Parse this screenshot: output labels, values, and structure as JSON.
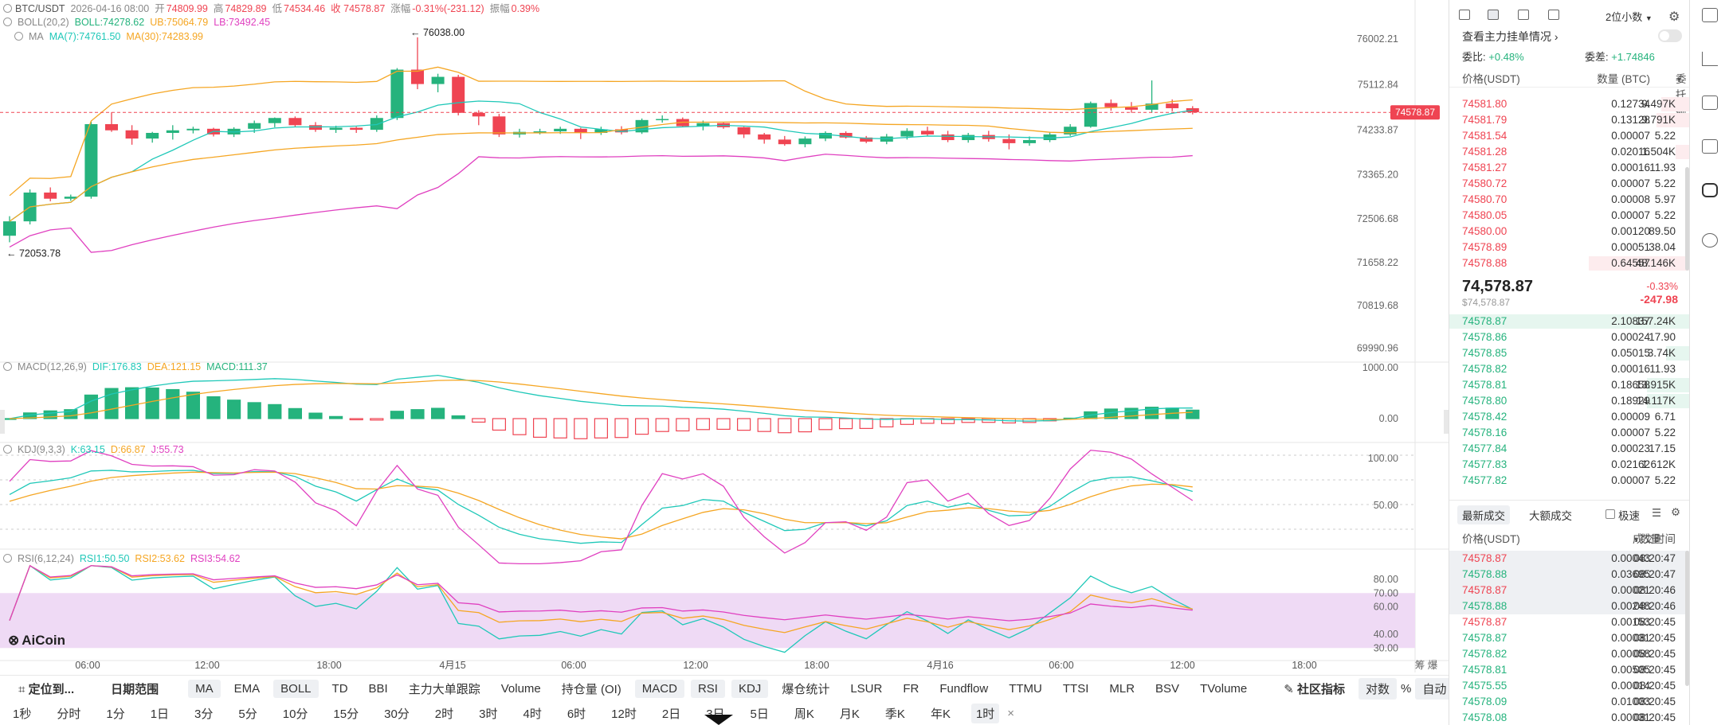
{
  "header": {
    "pair": "BTC/USDT",
    "datetime": "2026-04-16 08:00",
    "open_l": "开",
    "open": "74809.99",
    "high_l": "高",
    "high": "74829.89",
    "low_l": "低",
    "low": "74534.46",
    "close": "收 74578.87",
    "chg_l": "涨幅",
    "chg": "-0.31%(-231.12)",
    "amp_l": "振幅",
    "amp": "0.39%"
  },
  "boll": {
    "label": "BOLL(20,2)",
    "mid": "BOLL:74278.62",
    "ub": "UB:75064.79",
    "lb": "LB:73492.45"
  },
  "ma": {
    "label": "MA",
    "ma7": "MA(7):74761.50",
    "ma30": "MA(30):74283.99"
  },
  "macd": {
    "label": "MACD(12,26,9)",
    "dif": "DIF:176.83",
    "dea": "DEA:121.15",
    "macd": "MACD:111.37"
  },
  "kdj": {
    "label": "KDJ(9,3,3)",
    "k": "K:63.15",
    "d": "D:66.87",
    "j": "J:55.73"
  },
  "rsi": {
    "label": "RSI(6,12,24)",
    "rsi1": "RSI1:50.50",
    "rsi2": "RSI2:53.62",
    "rsi3": "RSI3:54.62"
  },
  "price_axis": [
    "76002.21",
    "75112.84",
    "74233.87",
    "73365.20",
    "72506.68",
    "71658.22",
    "70819.68",
    "69990.96"
  ],
  "current_price_tag": "74578.87",
  "max_label": "← 76038.00",
  "min_label": "← 72053.78",
  "macd_axis": [
    "1000.00",
    "0.00"
  ],
  "kdj_axis": [
    "100.00",
    "50.00"
  ],
  "rsi_axis": [
    "80.00",
    "70.00",
    "60.00",
    "40.00",
    "30.00"
  ],
  "time_axis": [
    "06:00",
    "12:00",
    "18:00",
    "4月15",
    "06:00",
    "12:00",
    "18:00",
    "4月16",
    "06:00",
    "12:00",
    "18:00"
  ],
  "axis_corner": "筹 爆",
  "logo": "AiCoin",
  "toolbar_main": {
    "locate": "定位到...",
    "range": "日期范围",
    "indicators": [
      "MA",
      "EMA",
      "BOLL",
      "TD",
      "BBI",
      "主力大单跟踪",
      "Volume",
      "持仓量 (OI)",
      "MACD",
      "RSI",
      "KDJ",
      "爆仓统计",
      "LSUR",
      "FR",
      "Fundflow",
      "TTMU",
      "TTSI",
      "MLR",
      "BSV",
      "TVolume"
    ],
    "community": "社区指标",
    "log": "对数",
    "pct": "%",
    "auto": "自动"
  },
  "timeframes": [
    "1秒",
    "分时",
    "1分",
    "1日",
    "3分",
    "5分",
    "10分",
    "15分",
    "30分",
    "2时",
    "3时",
    "4时",
    "6时",
    "12时",
    "2日",
    "3日",
    "5日",
    "周K",
    "月K",
    "季K",
    "年K",
    "1时"
  ],
  "timeframe_close": "×",
  "orderbook": {
    "decimals": "2位小数",
    "main_orders": "查看主力挂单情况",
    "ratio_l": "委比:",
    "ratio": "+0.48%",
    "diff_l": "委差:",
    "diff": "+1.74846",
    "col_price": "价格(USDT)",
    "col_qty": "数量 (BTC)",
    "col_total": "委托额",
    "asks": [
      {
        "p": "74581.80",
        "q": "0.12734",
        "t": "9.497K"
      },
      {
        "p": "74581.79",
        "q": "0.13128",
        "t": "9.791K"
      },
      {
        "p": "74581.54",
        "q": "0.00007",
        "t": "5.22"
      },
      {
        "p": "74581.28",
        "q": "0.02016",
        "t": "1.504K"
      },
      {
        "p": "74581.27",
        "q": "0.00016",
        "t": "11.93"
      },
      {
        "p": "74580.72",
        "q": "0.00007",
        "t": "5.22"
      },
      {
        "p": "74580.70",
        "q": "0.00008",
        "t": "5.97"
      },
      {
        "p": "74580.05",
        "q": "0.00007",
        "t": "5.22"
      },
      {
        "p": "74580.00",
        "q": "0.00120",
        "t": "89.50"
      },
      {
        "p": "74578.89",
        "q": "0.00051",
        "t": "38.04"
      },
      {
        "p": "74578.88",
        "q": "0.64557",
        "t": "48.146K"
      }
    ],
    "last_price": "74,578.87",
    "last_sub": "$74,578.87",
    "last_pct": "-0.33%",
    "last_chg": "-247.98",
    "bids": [
      {
        "p": "74578.87",
        "q": "2.10837",
        "t": "157.24K"
      },
      {
        "p": "74578.86",
        "q": "0.00024",
        "t": "17.90"
      },
      {
        "p": "74578.85",
        "q": "0.05015",
        "t": "3.74K"
      },
      {
        "p": "74578.82",
        "q": "0.00016",
        "t": "11.93"
      },
      {
        "p": "74578.81",
        "q": "0.18658",
        "t": "13.915K"
      },
      {
        "p": "74578.80",
        "q": "0.18929",
        "t": "14.117K"
      },
      {
        "p": "74578.42",
        "q": "0.00009",
        "t": "6.71"
      },
      {
        "p": "74578.16",
        "q": "0.00007",
        "t": "5.22"
      },
      {
        "p": "74577.84",
        "q": "0.00023",
        "t": "17.15"
      },
      {
        "p": "74577.83",
        "q": "0.02162",
        "t": "1.612K"
      },
      {
        "p": "74577.82",
        "q": "0.00007",
        "t": "5.22"
      }
    ]
  },
  "trades": {
    "tab_latest": "最新成交",
    "tab_large": "大额成交",
    "fast": "极速",
    "col_price": "价格(USDT)",
    "col_qty": "数量(BTC)",
    "col_time": "成交时间",
    "rows": [
      {
        "p": "74578.87",
        "q": "0.00043",
        "t": "08:20:47",
        "s": "sell"
      },
      {
        "p": "74578.88",
        "q": "0.03695",
        "t": "08:20:47",
        "s": "buy"
      },
      {
        "p": "74578.87",
        "q": "0.00021",
        "t": "08:20:46",
        "s": "sell"
      },
      {
        "p": "74578.88",
        "q": "0.00248",
        "t": "08:20:46",
        "s": "buy"
      },
      {
        "p": "74578.87",
        "q": "0.00153",
        "t": "08:20:45",
        "s": "sell"
      },
      {
        "p": "74578.87",
        "q": "0.00031",
        "t": "08:20:45",
        "s": "buy"
      },
      {
        "p": "74578.82",
        "q": "0.00058",
        "t": "08:20:45",
        "s": "buy"
      },
      {
        "p": "74578.81",
        "q": "0.00505",
        "t": "08:20:45",
        "s": "buy"
      },
      {
        "p": "74575.55",
        "q": "0.00014",
        "t": "08:20:45",
        "s": "buy"
      },
      {
        "p": "74578.09",
        "q": "0.01003",
        "t": "08:20:45",
        "s": "buy"
      },
      {
        "p": "74578.08",
        "q": "0.00031",
        "t": "08:20:45",
        "s": "buy"
      }
    ]
  },
  "colors": {
    "up": "#25b37d",
    "down": "#ef4452",
    "boll_ub": "#f5a623",
    "boll_lb": "#e040c0",
    "ma7": "#1fc8b8",
    "ma30": "#f5a623"
  },
  "chart_data": {
    "type": "candlestick",
    "interval": "1时",
    "ohlc_approx": [
      [
        72180,
        72560,
        72053,
        72460
      ],
      [
        72460,
        73080,
        72400,
        73020
      ],
      [
        73020,
        73120,
        72850,
        72900
      ],
      [
        72900,
        72980,
        72860,
        72940
      ],
      [
        72940,
        74400,
        72900,
        74350
      ],
      [
        74350,
        74580,
        74200,
        74230
      ],
      [
        74230,
        74330,
        73950,
        74070
      ],
      [
        74070,
        74200,
        73990,
        74180
      ],
      [
        74180,
        74330,
        74050,
        74230
      ],
      [
        74230,
        74300,
        74170,
        74260
      ],
      [
        74260,
        74280,
        74110,
        74150
      ],
      [
        74150,
        74290,
        74100,
        74260
      ],
      [
        74260,
        74420,
        74180,
        74370
      ],
      [
        74370,
        74480,
        74290,
        74470
      ],
      [
        74470,
        74500,
        74300,
        74330
      ],
      [
        74330,
        74390,
        74200,
        74240
      ],
      [
        74240,
        74320,
        74180,
        74280
      ],
      [
        74280,
        74300,
        74180,
        74240
      ],
      [
        74240,
        74520,
        74200,
        74470
      ],
      [
        74470,
        75440,
        74430,
        75410
      ],
      [
        75410,
        76038,
        75030,
        75130
      ],
      [
        75130,
        75330,
        74970,
        75270
      ],
      [
        75270,
        75310,
        74520,
        74570
      ],
      [
        74570,
        74620,
        74330,
        74500
      ],
      [
        74500,
        74550,
        74100,
        74150
      ],
      [
        74150,
        74260,
        74090,
        74200
      ],
      [
        74200,
        74260,
        74150,
        74210
      ],
      [
        74210,
        74300,
        74160,
        74260
      ],
      [
        74260,
        74280,
        74060,
        74180
      ],
      [
        74180,
        74300,
        74140,
        74250
      ],
      [
        74250,
        74310,
        74150,
        74190
      ],
      [
        74190,
        74460,
        74160,
        74430
      ],
      [
        74430,
        74520,
        74380,
        74450
      ],
      [
        74450,
        74480,
        74300,
        74310
      ],
      [
        74310,
        74420,
        74230,
        74370
      ],
      [
        74370,
        74380,
        74260,
        74290
      ],
      [
        74290,
        74300,
        74080,
        74150
      ],
      [
        74150,
        74180,
        73970,
        74050
      ],
      [
        74050,
        74120,
        73930,
        73960
      ],
      [
        73960,
        74110,
        73900,
        74070
      ],
      [
        74070,
        74210,
        74020,
        74180
      ],
      [
        74180,
        74210,
        74070,
        74090
      ],
      [
        74090,
        74120,
        73980,
        74010
      ],
      [
        74010,
        74160,
        73960,
        74110
      ],
      [
        74110,
        74270,
        74050,
        74220
      ],
      [
        74220,
        74300,
        74120,
        74150
      ],
      [
        74150,
        74220,
        74000,
        74040
      ],
      [
        74040,
        74180,
        73990,
        74140
      ],
      [
        74140,
        74220,
        74010,
        74060
      ],
      [
        74060,
        74150,
        73860,
        73980
      ],
      [
        73980,
        74110,
        73930,
        74040
      ],
      [
        74040,
        74200,
        74000,
        74150
      ],
      [
        74150,
        74350,
        74120,
        74300
      ],
      [
        74300,
        74790,
        74280,
        74760
      ],
      [
        74760,
        74830,
        74610,
        74680
      ],
      [
        74680,
        74780,
        74570,
        74630
      ],
      [
        74630,
        75200,
        74570,
        74750
      ],
      [
        74750,
        74830,
        74600,
        74660
      ],
      [
        74660,
        74700,
        74540,
        74580
      ]
    ],
    "price_range": [
      69800,
      76300
    ],
    "series": [
      {
        "name": "BOLL UB"
      },
      {
        "name": "BOLL"
      },
      {
        "name": "BOLL LB"
      },
      {
        "name": "MA(7)"
      },
      {
        "name": "MA(30)"
      }
    ]
  }
}
